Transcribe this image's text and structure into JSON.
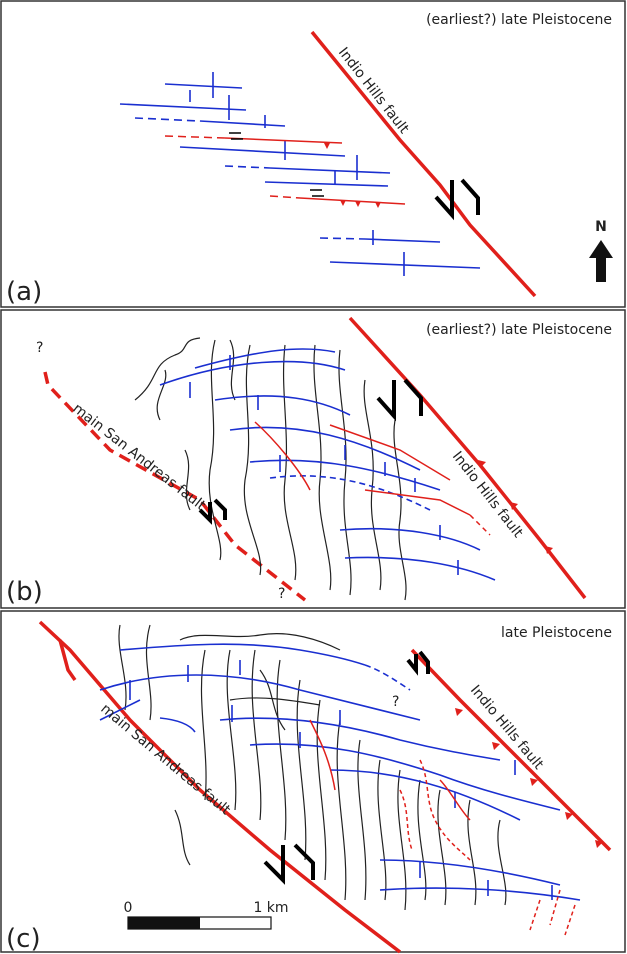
{
  "panels": [
    {
      "label": "(a)",
      "age": "(earliest?) late Pleistocene",
      "faults": [
        "Indio Hills fault"
      ],
      "north": "N"
    },
    {
      "label": "(b)",
      "age": "(earliest?) late Pleistocene",
      "faults": [
        "main San Andreas fault",
        "Indio Hills fault"
      ],
      "queries": [
        "?",
        "?"
      ]
    },
    {
      "label": "(c)",
      "age": "late Pleistocene",
      "faults": [
        "main San Andreas fault",
        "Indio Hills fault"
      ],
      "query": "?",
      "scale": {
        "start": "0",
        "end": "1 km"
      }
    }
  ]
}
